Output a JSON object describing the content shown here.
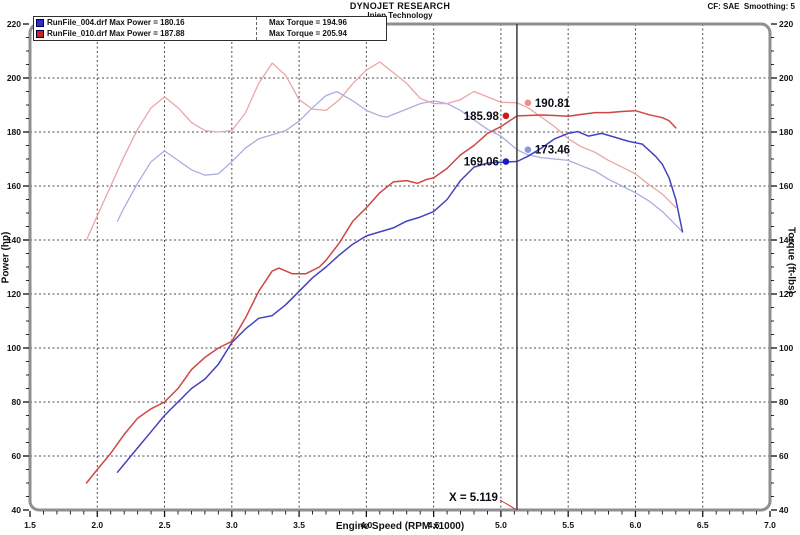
{
  "header": {
    "title": "DYNOJET RESEARCH",
    "subtitle": "Injen Technology",
    "right": "CF: SAE  Smoothing: 5"
  },
  "legend": {
    "rows": [
      {
        "swatch": "#2d2dcc",
        "file": "RunFile_004.drf",
        "power_label": "Max Power = 180.16",
        "torque_label": "Max Torque = 194.96"
      },
      {
        "swatch": "#cc2222",
        "file": "RunFile_010.drf",
        "power_label": "Max Power = 187.88",
        "torque_label": "Max Torque = 205.94"
      }
    ]
  },
  "axes": {
    "x_title": "Engine Speed (RPM x1000)",
    "y_left_title": "Power (hp)",
    "y_right_title": "Torque (ft-lbs)"
  },
  "cursor": {
    "x_value": 5.119,
    "label": "X = 5.119"
  },
  "markers": [
    {
      "series": "RunFile_010 Torque",
      "label": "190.81",
      "value": 190.81,
      "side": "right",
      "color": "#ee8f8f"
    },
    {
      "series": "RunFile_010 Power",
      "label": "185.98",
      "value": 185.98,
      "side": "left",
      "color": "#cc1a1a"
    },
    {
      "series": "RunFile_004 Torque",
      "label": "173.46",
      "value": 173.46,
      "side": "right",
      "color": "#8d96e6"
    },
    {
      "series": "RunFile_004 Power",
      "label": "169.06",
      "value": 169.06,
      "side": "left",
      "color": "#1a1acc"
    }
  ],
  "chart_data": {
    "type": "line",
    "title": "DYNOJET RESEARCH - Injen Technology",
    "xlabel": "Engine Speed (RPM x1000)",
    "ylabel_left": "Power (hp)",
    "ylabel_right": "Torque (ft-lbs)",
    "xlim": [
      1.5,
      7.0
    ],
    "ylim": [
      40,
      220
    ],
    "x_major": 0.5,
    "x_minor": 0.1,
    "y_major": 20,
    "y_minor": 5,
    "grid": "dashed",
    "cursor_x": 5.119,
    "colors": {
      "grid": "#4b4b4b",
      "border": "#8f8f8f",
      "cursor": "#3c3c3c",
      "tick": "#111111",
      "pointer": "#cc3333"
    },
    "series": [
      {
        "name": "RunFile_004 Torque (ft-lbs)",
        "color": "#a9aede",
        "width": 1.3,
        "points": [
          [
            2.15,
            147
          ],
          [
            2.2,
            152
          ],
          [
            2.3,
            161
          ],
          [
            2.4,
            169
          ],
          [
            2.5,
            173
          ],
          [
            2.6,
            169.5
          ],
          [
            2.7,
            166
          ],
          [
            2.8,
            164
          ],
          [
            2.9,
            164.5
          ],
          [
            3.0,
            169
          ],
          [
            3.1,
            174
          ],
          [
            3.2,
            177.5
          ],
          [
            3.3,
            179
          ],
          [
            3.4,
            180.5
          ],
          [
            3.5,
            184
          ],
          [
            3.6,
            189
          ],
          [
            3.7,
            193.5
          ],
          [
            3.78,
            194.96
          ],
          [
            3.9,
            191.5
          ],
          [
            4.0,
            188
          ],
          [
            4.1,
            186
          ],
          [
            4.15,
            185.5
          ],
          [
            4.3,
            188.5
          ],
          [
            4.4,
            190.5
          ],
          [
            4.5,
            191.5
          ],
          [
            4.6,
            190.5
          ],
          [
            4.7,
            188
          ],
          [
            4.8,
            184.5
          ],
          [
            4.9,
            181
          ],
          [
            5.0,
            178.5
          ],
          [
            5.12,
            173.46
          ],
          [
            5.2,
            171.5
          ],
          [
            5.3,
            170.5
          ],
          [
            5.4,
            170
          ],
          [
            5.5,
            169.5
          ],
          [
            5.6,
            167.5
          ],
          [
            5.7,
            165.5
          ],
          [
            5.8,
            162.5
          ],
          [
            5.9,
            160
          ],
          [
            6.0,
            157.5
          ],
          [
            6.1,
            154.5
          ],
          [
            6.2,
            150.5
          ],
          [
            6.3,
            145.5
          ],
          [
            6.35,
            143
          ]
        ]
      },
      {
        "name": "RunFile_010 Torque (ft-lbs)",
        "color": "#eaa6a6",
        "width": 1.3,
        "points": [
          [
            1.92,
            140
          ],
          [
            2.0,
            149
          ],
          [
            2.1,
            160
          ],
          [
            2.2,
            171
          ],
          [
            2.3,
            181
          ],
          [
            2.4,
            189
          ],
          [
            2.5,
            193
          ],
          [
            2.6,
            189
          ],
          [
            2.7,
            183.5
          ],
          [
            2.8,
            180.5
          ],
          [
            2.9,
            180
          ],
          [
            3.0,
            180.5
          ],
          [
            3.1,
            187
          ],
          [
            3.2,
            198
          ],
          [
            3.3,
            205.5
          ],
          [
            3.4,
            201
          ],
          [
            3.5,
            192
          ],
          [
            3.6,
            188.5
          ],
          [
            3.7,
            188
          ],
          [
            3.8,
            192
          ],
          [
            3.9,
            198
          ],
          [
            4.0,
            203
          ],
          [
            4.1,
            205.94
          ],
          [
            4.2,
            202
          ],
          [
            4.3,
            198
          ],
          [
            4.4,
            192.5
          ],
          [
            4.5,
            190.5
          ],
          [
            4.6,
            190.5
          ],
          [
            4.7,
            192
          ],
          [
            4.8,
            195
          ],
          [
            4.9,
            193
          ],
          [
            5.0,
            191
          ],
          [
            5.12,
            190.81
          ],
          [
            5.2,
            189
          ],
          [
            5.3,
            185.5
          ],
          [
            5.4,
            182
          ],
          [
            5.5,
            177.5
          ],
          [
            5.6,
            174.5
          ],
          [
            5.7,
            172.5
          ],
          [
            5.8,
            169.5
          ],
          [
            5.9,
            167
          ],
          [
            6.0,
            164.5
          ],
          [
            6.1,
            160.5
          ],
          [
            6.2,
            157
          ],
          [
            6.3,
            152
          ]
        ]
      },
      {
        "name": "RunFile_004 Power (hp)",
        "color": "#4343bd",
        "width": 1.5,
        "points": [
          [
            2.15,
            54
          ],
          [
            2.2,
            57
          ],
          [
            2.3,
            63
          ],
          [
            2.4,
            69
          ],
          [
            2.5,
            75
          ],
          [
            2.6,
            80
          ],
          [
            2.7,
            85
          ],
          [
            2.8,
            88.5
          ],
          [
            2.9,
            94
          ],
          [
            3.0,
            102
          ],
          [
            3.1,
            107
          ],
          [
            3.2,
            111
          ],
          [
            3.3,
            112
          ],
          [
            3.4,
            116
          ],
          [
            3.5,
            121
          ],
          [
            3.6,
            126
          ],
          [
            3.7,
            130
          ],
          [
            3.8,
            134.5
          ],
          [
            3.9,
            138.5
          ],
          [
            4.0,
            141.5
          ],
          [
            4.1,
            143
          ],
          [
            4.2,
            144.5
          ],
          [
            4.3,
            147
          ],
          [
            4.4,
            148.5
          ],
          [
            4.5,
            150.5
          ],
          [
            4.6,
            155
          ],
          [
            4.7,
            162
          ],
          [
            4.8,
            167
          ],
          [
            4.9,
            168.5
          ],
          [
            5.0,
            168.8
          ],
          [
            5.12,
            169.06
          ],
          [
            5.2,
            171
          ],
          [
            5.3,
            174
          ],
          [
            5.4,
            177.5
          ],
          [
            5.5,
            179.5
          ],
          [
            5.57,
            180.16
          ],
          [
            5.65,
            178.5
          ],
          [
            5.75,
            179.5
          ],
          [
            5.85,
            178
          ],
          [
            5.95,
            176.5
          ],
          [
            6.05,
            175.5
          ],
          [
            6.15,
            171
          ],
          [
            6.2,
            168
          ],
          [
            6.25,
            163
          ],
          [
            6.3,
            155
          ],
          [
            6.35,
            143
          ]
        ]
      },
      {
        "name": "RunFile_010 Power (hp)",
        "color": "#cf4545",
        "width": 1.5,
        "points": [
          [
            1.92,
            50
          ],
          [
            2.0,
            55
          ],
          [
            2.1,
            61
          ],
          [
            2.2,
            68
          ],
          [
            2.3,
            74
          ],
          [
            2.4,
            77.5
          ],
          [
            2.5,
            80
          ],
          [
            2.6,
            85
          ],
          [
            2.7,
            92
          ],
          [
            2.8,
            96.5
          ],
          [
            2.9,
            100
          ],
          [
            3.0,
            102.5
          ],
          [
            3.1,
            111
          ],
          [
            3.2,
            121
          ],
          [
            3.3,
            128.5
          ],
          [
            3.35,
            129.6
          ],
          [
            3.45,
            127.5
          ],
          [
            3.55,
            127.5
          ],
          [
            3.65,
            130
          ],
          [
            3.7,
            132.5
          ],
          [
            3.8,
            139
          ],
          [
            3.9,
            147
          ],
          [
            4.0,
            152
          ],
          [
            4.1,
            157.5
          ],
          [
            4.2,
            161.5
          ],
          [
            4.3,
            162
          ],
          [
            4.38,
            161
          ],
          [
            4.45,
            162.5
          ],
          [
            4.5,
            163
          ],
          [
            4.6,
            166.5
          ],
          [
            4.7,
            171.5
          ],
          [
            4.8,
            175
          ],
          [
            4.9,
            179.5
          ],
          [
            5.0,
            182
          ],
          [
            5.12,
            185.98
          ],
          [
            5.2,
            186.1
          ],
          [
            5.3,
            186.3
          ],
          [
            5.4,
            186.1
          ],
          [
            5.5,
            185.8
          ],
          [
            5.6,
            186.5
          ],
          [
            5.7,
            187.2
          ],
          [
            5.8,
            187.2
          ],
          [
            5.9,
            187.6
          ],
          [
            6.0,
            187.88
          ],
          [
            6.1,
            186.4
          ],
          [
            6.2,
            185.3
          ],
          [
            6.25,
            184.2
          ],
          [
            6.3,
            181.5
          ]
        ]
      }
    ]
  }
}
